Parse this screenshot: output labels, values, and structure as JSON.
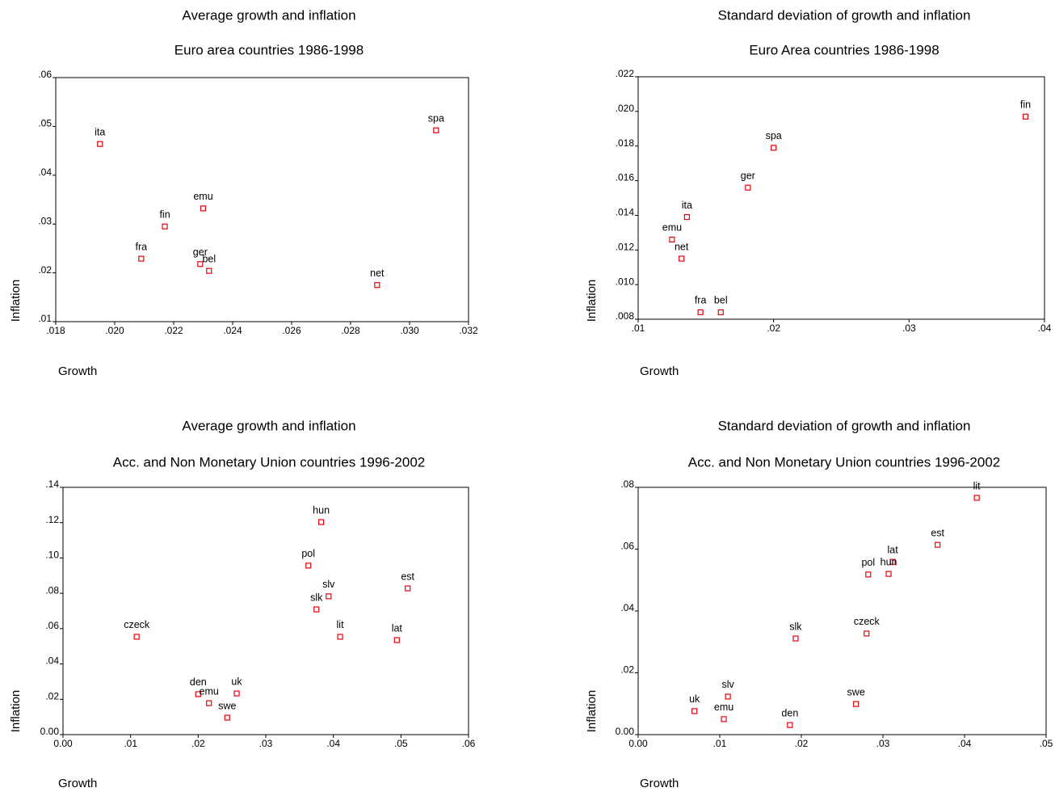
{
  "chart_data": [
    {
      "type": "scatter",
      "title": "Average growth and inflation",
      "subtitle": "Euro area countries 1986-1998",
      "xlabel": "Growth",
      "ylabel": "Inflation",
      "color": "#e8000b",
      "point_labels": [
        "ita",
        "spa",
        "emu",
        "fin",
        "fra",
        "ger",
        "bel",
        "net"
      ],
      "x": [
        0.0195,
        0.0309,
        0.023,
        0.0217,
        0.0209,
        0.0229,
        0.0232,
        0.0289
      ],
      "y": [
        0.0464,
        0.0492,
        0.0332,
        0.0295,
        0.0229,
        0.0218,
        0.0204,
        0.0175
      ],
      "xlim": [
        0.018,
        0.032
      ],
      "xticks": [
        {
          "value": 0.018,
          "label": ".018"
        },
        {
          "value": 0.02,
          "label": ".020"
        },
        {
          "value": 0.022,
          "label": ".022"
        },
        {
          "value": 0.024,
          "label": ".024"
        },
        {
          "value": 0.026,
          "label": ".026"
        },
        {
          "value": 0.028,
          "label": ".028"
        },
        {
          "value": 0.03,
          "label": ".030"
        },
        {
          "value": 0.032,
          "label": ".032"
        }
      ],
      "ylim": [
        0.01,
        0.06
      ],
      "yticks": [
        {
          "value": 0.01,
          "label": ".01"
        },
        {
          "value": 0.02,
          "label": ".02"
        },
        {
          "value": 0.03,
          "label": ".03"
        },
        {
          "value": 0.04,
          "label": ".04"
        },
        {
          "value": 0.05,
          "label": ".05"
        },
        {
          "value": 0.06,
          "label": ".06"
        }
      ]
    },
    {
      "type": "scatter",
      "title": "Standard deviation of growth and inflation",
      "subtitle": "Euro Area countries 1986-1998",
      "xlabel": "Growth",
      "ylabel": "Inflation",
      "color": "#e8000b",
      "point_labels": [
        "fin",
        "spa",
        "ger",
        "ita",
        "emu",
        "net",
        "fra",
        "bel"
      ],
      "x": [
        0.0386,
        0.02,
        0.0181,
        0.0136,
        0.0125,
        0.0132,
        0.0146,
        0.0161
      ],
      "y": [
        0.0197,
        0.0179,
        0.0156,
        0.0139,
        0.0126,
        0.0115,
        0.0084,
        0.0084
      ],
      "xlim": [
        0.01,
        0.04
      ],
      "xticks": [
        {
          "value": 0.01,
          "label": ".01"
        },
        {
          "value": 0.02,
          "label": ".02"
        },
        {
          "value": 0.03,
          "label": ".03"
        },
        {
          "value": 0.04,
          "label": ".04"
        }
      ],
      "ylim": [
        0.008,
        0.022
      ],
      "yticks": [
        {
          "value": 0.008,
          "label": ".008"
        },
        {
          "value": 0.01,
          "label": ".010"
        },
        {
          "value": 0.012,
          "label": ".012"
        },
        {
          "value": 0.014,
          "label": ".014"
        },
        {
          "value": 0.016,
          "label": ".016"
        },
        {
          "value": 0.018,
          "label": ".018"
        },
        {
          "value": 0.02,
          "label": ".020"
        },
        {
          "value": 0.022,
          "label": ".022"
        }
      ]
    },
    {
      "type": "scatter",
      "title": "Average growth and inflation",
      "subtitle": "Acc. and Non Monetary Union countries 1996-2002",
      "xlabel": "Growth",
      "ylabel": "Inflation",
      "color": "#e8000b",
      "point_labels": [
        "hun",
        "pol",
        "slv",
        "est",
        "slk",
        "czeck",
        "lit",
        "lat",
        "den",
        "uk",
        "emu",
        "swe"
      ],
      "x": [
        0.0382,
        0.0363,
        0.0393,
        0.051,
        0.0375,
        0.0109,
        0.041,
        0.0494,
        0.02,
        0.0257,
        0.0216,
        0.0243
      ],
      "y": [
        0.1203,
        0.0957,
        0.0783,
        0.0828,
        0.0709,
        0.0554,
        0.0554,
        0.0535,
        0.0229,
        0.0233,
        0.0178,
        0.0096
      ],
      "xlim": [
        0,
        0.06
      ],
      "xticks": [
        {
          "value": 0,
          "label": "0.00"
        },
        {
          "value": 0.01,
          "label": ".01"
        },
        {
          "value": 0.02,
          "label": ".02"
        },
        {
          "value": 0.03,
          "label": ".03"
        },
        {
          "value": 0.04,
          "label": ".04"
        },
        {
          "value": 0.05,
          "label": ".05"
        },
        {
          "value": 0.06,
          "label": ".06"
        }
      ],
      "ylim": [
        0,
        0.14
      ],
      "yticks": [
        {
          "value": 0,
          "label": "0.00"
        },
        {
          "value": 0.02,
          "label": ".02"
        },
        {
          "value": 0.04,
          "label": ".04"
        },
        {
          "value": 0.06,
          "label": ".06"
        },
        {
          "value": 0.08,
          "label": ".08"
        },
        {
          "value": 0.1,
          "label": ".10"
        },
        {
          "value": 0.12,
          "label": ".12"
        },
        {
          "value": 0.14,
          "label": ".14"
        }
      ]
    },
    {
      "type": "scatter",
      "title": "Standard deviation of growth and inflation",
      "subtitle": "Acc. and Non Monetary Union countries 1996-2002",
      "xlabel": "Growth",
      "ylabel": "Inflation",
      "color": "#e8000b",
      "point_labels": [
        "lit",
        "est",
        "lat",
        "hun",
        "pol",
        "slk",
        "czeck",
        "swe",
        "slv",
        "uk",
        "emu",
        "den"
      ],
      "x": [
        0.0415,
        0.0367,
        0.0312,
        0.0307,
        0.0282,
        0.0193,
        0.028,
        0.0267,
        0.011,
        0.0069,
        0.0105,
        0.0186
      ],
      "y": [
        0.0766,
        0.0614,
        0.0559,
        0.052,
        0.0518,
        0.0311,
        0.0327,
        0.0099,
        0.0123,
        0.0076,
        0.005,
        0.0031
      ],
      "xlim": [
        0,
        0.05
      ],
      "xticks": [
        {
          "value": 0,
          "label": "0.00"
        },
        {
          "value": 0.01,
          "label": ".01"
        },
        {
          "value": 0.02,
          "label": ".02"
        },
        {
          "value": 0.03,
          "label": ".03"
        },
        {
          "value": 0.04,
          "label": ".04"
        },
        {
          "value": 0.05,
          "label": ".05"
        }
      ],
      "ylim": [
        0,
        0.08
      ],
      "yticks": [
        {
          "value": 0,
          "label": "0.00"
        },
        {
          "value": 0.02,
          "label": ".02"
        },
        {
          "value": 0.04,
          "label": ".04"
        },
        {
          "value": 0.06,
          "label": ".06"
        },
        {
          "value": 0.08,
          "label": ".08"
        }
      ]
    }
  ]
}
